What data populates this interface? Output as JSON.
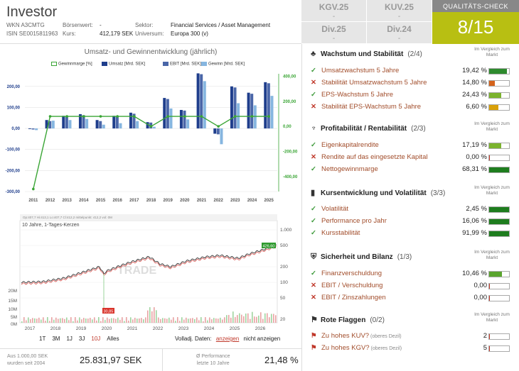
{
  "header": {
    "name": "Investor",
    "wkn_label": "WKN A3CMTG",
    "isin_label": "ISIN SE0015811963",
    "boersenwert_label": "Börsenwert:",
    "boersenwert_value": "-",
    "kurs_label": "Kurs:",
    "kurs_value": "412,179 SEK",
    "sektor_label": "Sektor:",
    "sektor_value": "Financial Services / Asset Management",
    "universum_label": "Universum:",
    "universum_value": "Europa 300 (v)"
  },
  "kennzahlen": [
    {
      "label": "KGV.25",
      "value": "-"
    },
    {
      "label": "KUV.25",
      "value": "-"
    },
    {
      "label": "Div.25",
      "value": "-"
    },
    {
      "label": "Div.24",
      "value": "-"
    }
  ],
  "quality": {
    "title": "QUALITÄTS-CHECK",
    "score": "8/15",
    "color": "#b8bf12"
  },
  "chart_data": [
    {
      "type": "bar",
      "title": "Umsatz- und Gewinnentwicklung (jährlich)",
      "categories": [
        "2011",
        "2012",
        "2013",
        "2014",
        "2015",
        "2016",
        "2017",
        "2018",
        "2019",
        "2020",
        "2021",
        "2022",
        "2023",
        "2024",
        "2025"
      ],
      "series": [
        {
          "name": "Umsatz [Mrd. SEK]",
          "color": "#1f3e8c",
          "values": [
            -3,
            40,
            60,
            68,
            40,
            60,
            75,
            30,
            145,
            88,
            262,
            -25,
            200,
            170,
            220
          ]
        },
        {
          "name": "EBIT [Mrd. SEK]",
          "color": "#4a66a8",
          "values": [
            -5,
            35,
            55,
            63,
            35,
            55,
            70,
            28,
            140,
            85,
            258,
            -28,
            195,
            165,
            215
          ]
        },
        {
          "name": "Gewinn [Mrd. SEK]",
          "color": "#86b6e0",
          "values": [
            -8,
            37,
            40,
            45,
            18,
            25,
            35,
            8,
            95,
            43,
            225,
            -75,
            120,
            110,
            155
          ]
        },
        {
          "name": "Gewinnmarge [%]",
          "color": "#3aa535",
          "axis": "right",
          "values": [
            -500,
            80,
            80,
            80,
            80,
            80,
            80,
            0,
            80,
            80,
            80,
            0,
            80,
            80,
            80
          ]
        }
      ],
      "y_left_ticks": [
        "200,00",
        "100,00",
        "0,00",
        "-100,00",
        "-200,00",
        "-300,00"
      ],
      "y_right_ticks": [
        "400,00",
        "200,00",
        "0,00",
        "-200,00",
        "-400,00"
      ],
      "ylim": [
        -300,
        260
      ],
      "y2lim": [
        -520,
        420
      ]
    },
    {
      "type": "line",
      "title": "10 Jahre, 1-Tages-Kerzen",
      "legend_text": "Op:407,7  Hi:413,1  Lo:407,7  Cl:412,2    mittelpunkt: 412,2    vol: 0M",
      "x": [
        "2017",
        "2018",
        "2019",
        "2020",
        "2021",
        "2022",
        "2023",
        "2024",
        "2025",
        "2026"
      ],
      "y_ticks": [
        "1.000",
        "500",
        "200",
        "100",
        "50",
        "20"
      ],
      "vol_ticks": [
        "20M",
        "15M",
        "10M",
        "5M",
        "0M"
      ],
      "low_label": "30,85",
      "high_label": "426,60",
      "watermark": "TRADE"
    }
  ],
  "stock_controls": {
    "ranges": [
      "1T",
      "3M",
      "1J",
      "3J",
      "10J",
      "Alles"
    ],
    "active_range": "10J",
    "volladj_label": "Volladj. Daten:",
    "anzeigen": "anzeigen",
    "nicht_anzeigen": "nicht anzeigen"
  },
  "bottom": {
    "aus_label": "Aus 1.000,00 SEK",
    "aus_sub": "wurden seit 2004",
    "aus_value": "25.831,97 SEK",
    "perf_label": "Ø Performance",
    "perf_sub": "letzte 10 Jahre",
    "perf_value": "21,48 %"
  },
  "sections": [
    {
      "icon": "leaf-icon",
      "glyph": "♣",
      "title": "Wachstum und Stabilität",
      "count": "(2/4)",
      "vm": "Im Vergleich zum Markt",
      "rows": [
        {
          "ok": true,
          "label": "Umsatzwachstum 5 Jahre",
          "value": "19,42 %",
          "fill": 0.9,
          "color": "#2e8b2e"
        },
        {
          "ok": false,
          "label": "Stabilität Umsatzwachstum 5 Jahre",
          "value": "14,80 %",
          "fill": 0.3,
          "color": "#d4631c"
        },
        {
          "ok": true,
          "label": "EPS-Wachstum 5 Jahre",
          "value": "24,43 %",
          "fill": 0.6,
          "color": "#7bb32e"
        },
        {
          "ok": false,
          "label": "Stabilität EPS-Wachstum 5 Jahre",
          "value": "6,60 %",
          "fill": 0.45,
          "color": "#d9a10a"
        }
      ]
    },
    {
      "icon": "hands-icon",
      "glyph": "♆",
      "title": "Profitabilität / Rentabilität",
      "count": "(2/3)",
      "vm": "Im Vergleich zum Markt",
      "rows": [
        {
          "ok": true,
          "label": "Eigenkapitalrendite",
          "value": "17,19 %",
          "fill": 0.6,
          "color": "#7bb32e"
        },
        {
          "ok": false,
          "label": "Rendite auf das eingesetzte Kapital",
          "value": "0,00 %",
          "fill": 0.05,
          "color": "#c0392b"
        },
        {
          "ok": true,
          "label": "Nettogewinnmarge",
          "value": "68,31 %",
          "fill": 1.0,
          "color": "#1e7d1e"
        }
      ]
    },
    {
      "icon": "bar-chart-icon",
      "glyph": "▮",
      "title": "Kursentwicklung und Volatilität",
      "count": "(3/3)",
      "vm": "Im Vergleich zum Markt",
      "rows": [
        {
          "ok": true,
          "label": "Volatilität",
          "value": "2,45 %",
          "fill": 1.0,
          "color": "#1e7d1e"
        },
        {
          "ok": true,
          "label": "Performance pro Jahr",
          "value": "16,06 %",
          "fill": 1.0,
          "color": "#1e7d1e"
        },
        {
          "ok": true,
          "label": "Kursstabilität",
          "value": "91,99 %",
          "fill": 1.0,
          "color": "#1e7d1e"
        }
      ]
    },
    {
      "icon": "shield-icon",
      "glyph": "⛨",
      "title": "Sicherheit und Bilanz",
      "count": "(1/3)",
      "vm": "Im Vergleich zum Markt",
      "rows": [
        {
          "ok": true,
          "label": "Finanzverschuldung",
          "value": "10,46 %",
          "fill": 0.65,
          "color": "#5aa52e"
        },
        {
          "ok": false,
          "label": "EBIT / Verschuldung",
          "value": "0,00",
          "fill": 0.05,
          "color": "#c0392b"
        },
        {
          "ok": false,
          "label": "EBIT / Zinszahlungen",
          "value": "0,00",
          "fill": 0.05,
          "color": "#c0392b"
        }
      ]
    },
    {
      "icon": "flag-icon",
      "glyph": "⚑",
      "title": "Rote Flaggen",
      "count": "(0/2)",
      "vm": "Im Vergleich zum Markt",
      "rows": [
        {
          "ok": false,
          "flag": true,
          "label": "Zu hohes KUV?",
          "sub": "(oberes Dezil)",
          "value": "2",
          "fill": 0.05,
          "color": "#c0392b"
        },
        {
          "ok": false,
          "flag": true,
          "label": "Zu hohes KGV?",
          "sub": "(oberes Dezil)",
          "value": "5",
          "fill": 0.05,
          "color": "#c0392b"
        }
      ]
    }
  ]
}
